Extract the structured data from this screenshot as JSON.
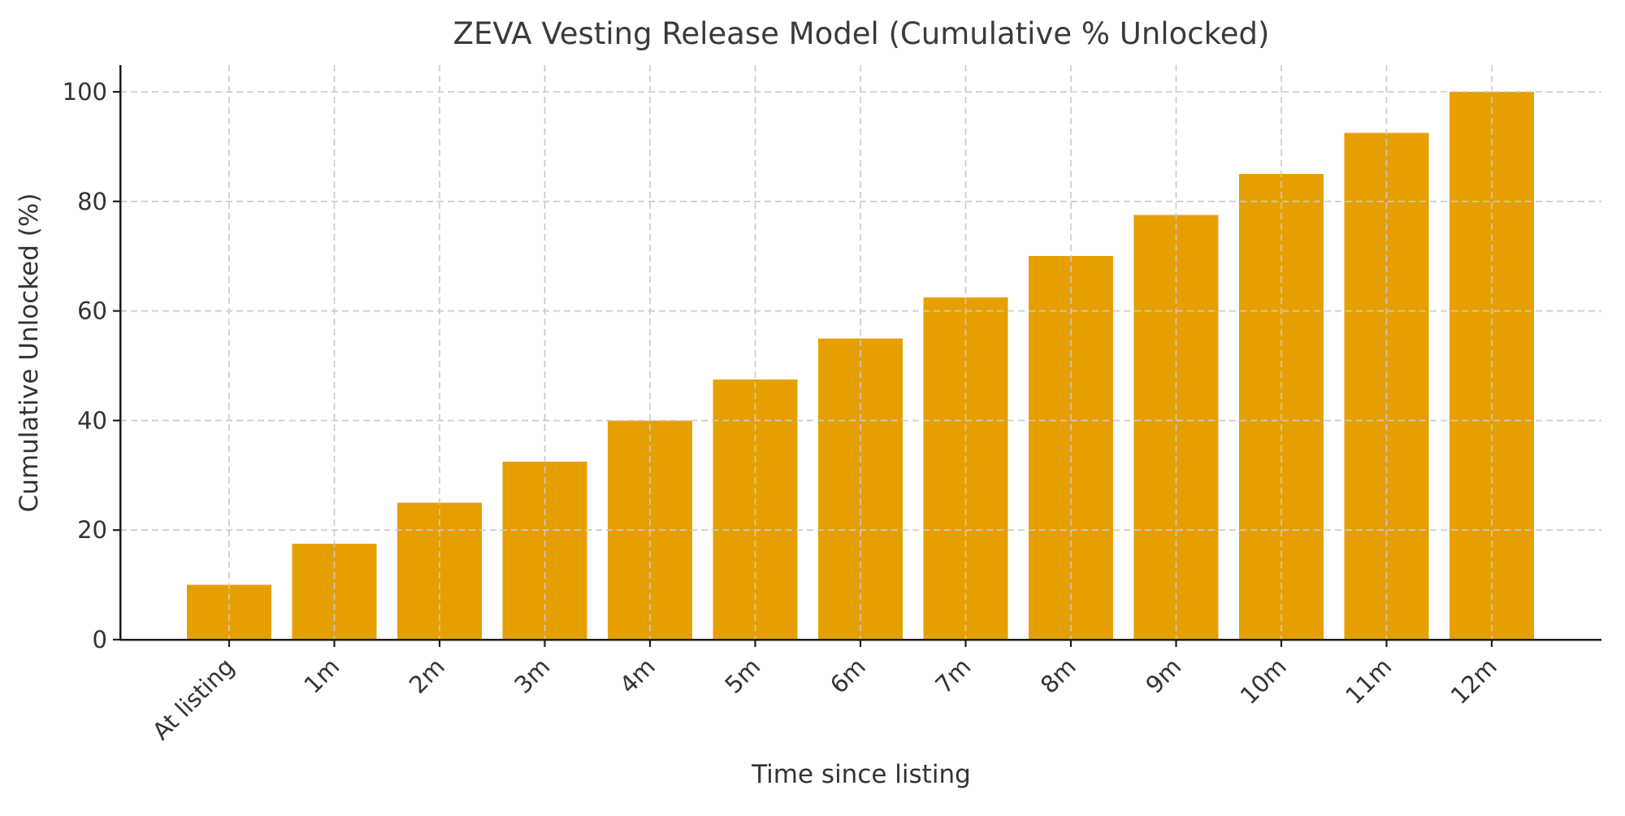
{
  "chart_data": {
    "type": "bar",
    "title": "ZEVA Vesting Release Model (Cumulative % Unlocked)",
    "xlabel": "Time since listing",
    "ylabel": "Cumulative Unlocked (%)",
    "categories": [
      "At listing",
      "1m",
      "2m",
      "3m",
      "4m",
      "5m",
      "6m",
      "7m",
      "8m",
      "9m",
      "10m",
      "11m",
      "12m"
    ],
    "values": [
      10,
      17.5,
      25,
      32.5,
      40,
      47.5,
      55,
      62.5,
      70,
      77.5,
      85,
      92.5,
      100
    ],
    "yticks": [
      0,
      20,
      40,
      60,
      80,
      100
    ],
    "ylim": [
      0,
      105
    ],
    "x_tick_rotation_deg": 45,
    "grid": "both-axes-dashed-drawn-over-bars",
    "legend": "none",
    "colors": {
      "bar": "#E69F00",
      "grid": "#c9c9c9",
      "axis": "#1c1c1c",
      "tick_text": "#333333",
      "title_text": "#3a3a3a",
      "background": "#ffffff"
    }
  }
}
